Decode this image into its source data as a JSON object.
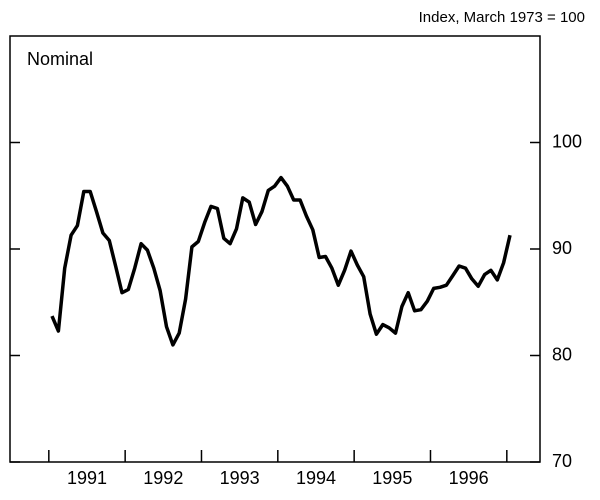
{
  "chart_data": {
    "type": "line",
    "title": "Nominal",
    "y_axis_label": "Index, March 1973 = 100",
    "categories": [
      null,
      null,
      null,
      null,
      null,
      null,
      "1991",
      null,
      null,
      null,
      null,
      null,
      null,
      null,
      null,
      null,
      null,
      null,
      "1992",
      null,
      null,
      null,
      null,
      null,
      null,
      null,
      null,
      null,
      null,
      null,
      "1993",
      null,
      null,
      null,
      null,
      null,
      null,
      null,
      null,
      null,
      null,
      null,
      "1994",
      null,
      null,
      null,
      null,
      null,
      null,
      null,
      null,
      null,
      null,
      null,
      "1995",
      null,
      null,
      null,
      null,
      null,
      null,
      null,
      null,
      null,
      null,
      null,
      "1996",
      null,
      null,
      null,
      null,
      null,
      null
    ],
    "series": [
      {
        "name": "Nominal",
        "color": "#000000",
        "values": [
          83.7,
          82.3,
          88.2,
          91.3,
          92.2,
          95.4,
          95.4,
          93.5,
          91.5,
          90.8,
          88.4,
          85.9,
          86.2,
          88.2,
          90.5,
          89.9,
          88.2,
          86.1,
          82.7,
          81.0,
          82.1,
          85.3,
          90.2,
          90.7,
          92.5,
          94.0,
          93.8,
          91.0,
          90.5,
          91.9,
          94.8,
          94.4,
          92.3,
          93.5,
          95.5,
          95.9,
          96.7,
          95.9,
          94.6,
          94.6,
          93.1,
          91.8,
          89.2,
          89.3,
          88.2,
          86.6,
          88.0,
          89.8,
          88.5,
          87.4,
          83.9,
          82.0,
          82.9,
          82.6,
          82.1,
          84.6,
          85.9,
          84.2,
          84.3,
          85.1,
          86.3,
          86.4,
          86.6,
          87.5,
          88.4,
          88.2,
          87.2,
          86.5,
          87.6,
          88.0,
          87.1,
          88.7,
          91.3
        ]
      }
    ],
    "ylim": [
      70,
      110
    ],
    "yticks": [
      70,
      80,
      90,
      100
    ],
    "y_axis_side": "right"
  }
}
